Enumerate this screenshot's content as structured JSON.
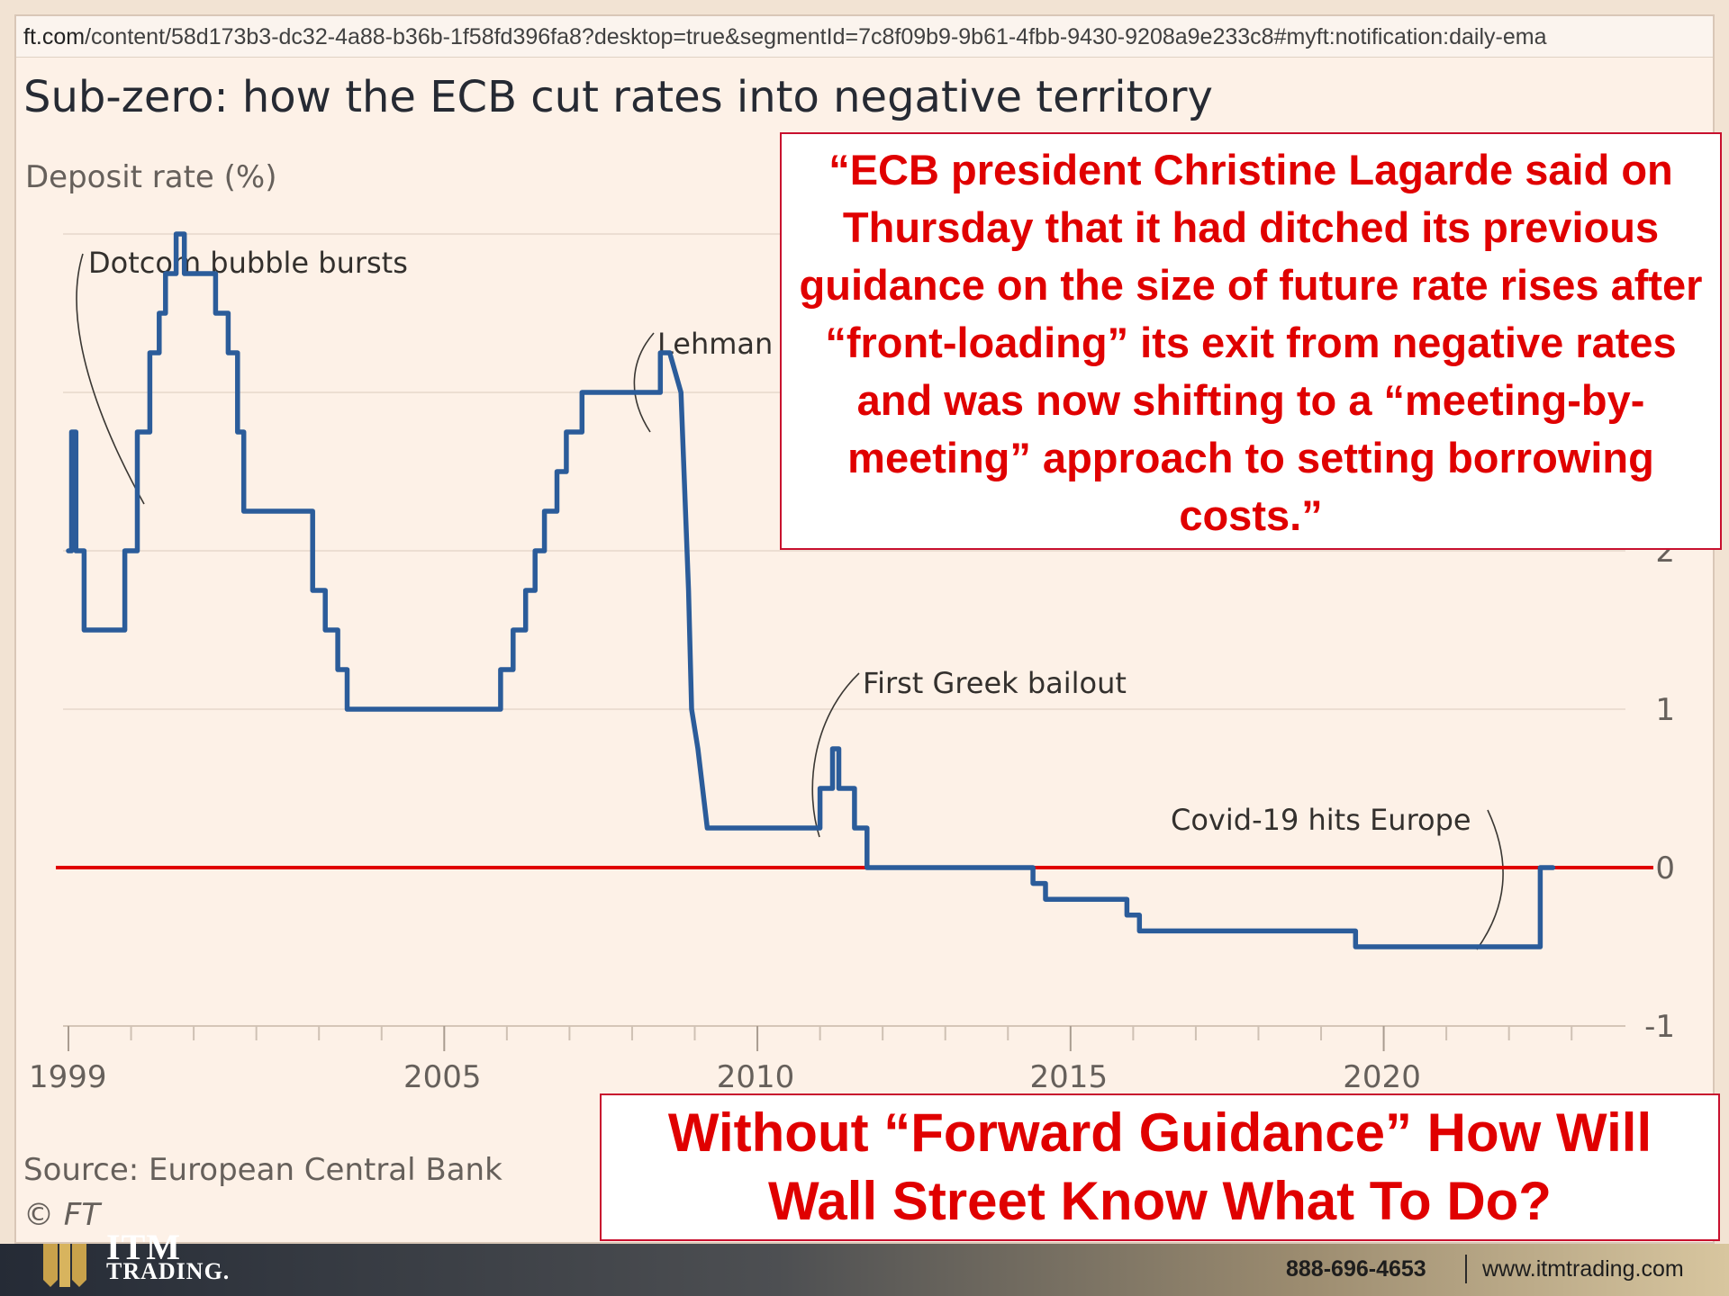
{
  "browser": {
    "url_domain": "ft.com",
    "url_path": "/content/58d173b3-dc32-4a88-b36b-1f58fd396fa8?desktop=true&segmentId=7c8f09b9-9b61-4fbb-9430-9208a9e233c8#myft:notification:daily-ema"
  },
  "chart_data": {
    "type": "line",
    "title": "Sub-zero: how the ECB cut rates into negative territory",
    "ylabel": "Deposit rate (%)",
    "xlim": [
      1999.0,
      2023.5
    ],
    "ylim": [
      -1,
      4
    ],
    "x_ticks": [
      "1999",
      "2005",
      "2010",
      "2015",
      "2020"
    ],
    "x_tick_values": [
      1999,
      2005,
      2010,
      2015,
      2020
    ],
    "y_ticks": [
      "2",
      "1",
      "0",
      "-1"
    ],
    "y_tick_values": [
      2,
      1,
      0,
      -1
    ],
    "grid": "horizontal",
    "reference_line": {
      "y": 0,
      "color": "#e00000"
    },
    "series": [
      {
        "color": "#2b5c9a",
        "x": [
          1999.0,
          1999.05,
          1999.05,
          1999.12,
          1999.12,
          1999.25,
          1999.25,
          1999.9,
          1999.9,
          2000.1,
          2000.1,
          2000.3,
          2000.3,
          2000.45,
          2000.45,
          2000.55,
          2000.55,
          2000.72,
          2000.72,
          2000.85,
          2000.85,
          2001.35,
          2001.35,
          2001.55,
          2001.55,
          2001.7,
          2001.7,
          2001.8,
          2001.8,
          2002.0,
          2002.9,
          2002.9,
          2003.1,
          2003.1,
          2003.3,
          2003.3,
          2003.45,
          2003.45,
          2005.9,
          2005.9,
          2006.1,
          2006.1,
          2006.3,
          2006.3,
          2006.45,
          2006.45,
          2006.6,
          2006.6,
          2006.8,
          2006.8,
          2006.95,
          2006.95,
          2007.2,
          2007.2,
          2007.4,
          2007.4,
          2007.45,
          2007.45,
          2008.45,
          2008.45,
          2008.6,
          2008.6,
          2008.78,
          2008.9,
          2008.95,
          2008.95,
          2009.05,
          2009.2,
          2009.3,
          2009.3,
          2011.0,
          2011.0,
          2011.2,
          2011.2,
          2011.3,
          2011.3,
          2011.55,
          2011.55,
          2011.75,
          2011.75,
          2012.0,
          2012.0,
          2012.45,
          2012.45,
          2014.4,
          2014.4,
          2014.6,
          2014.6,
          2014.7,
          2014.7,
          2015.9,
          2015.9,
          2016.1,
          2016.1,
          2016.2,
          2016.2,
          2019.55,
          2019.55,
          2019.7,
          2019.7,
          2022.5,
          2022.5,
          2022.6,
          2022.6,
          2022.7
        ],
        "values": [
          2.0,
          2.0,
          2.75,
          2.75,
          2.0,
          2.0,
          1.5,
          1.5,
          2.0,
          2.0,
          2.75,
          2.75,
          3.25,
          3.25,
          3.5,
          3.5,
          3.75,
          3.75,
          4.0,
          4.0,
          3.75,
          3.75,
          3.5,
          3.5,
          3.25,
          3.25,
          2.75,
          2.75,
          2.25,
          2.25,
          2.25,
          1.75,
          1.75,
          1.5,
          1.5,
          1.25,
          1.25,
          1.0,
          1.0,
          1.25,
          1.25,
          1.5,
          1.5,
          1.75,
          1.75,
          2.0,
          2.0,
          2.25,
          2.25,
          2.5,
          2.5,
          2.75,
          2.75,
          3.0,
          3.0,
          3.0,
          3.0,
          3.0,
          3.0,
          3.25,
          3.25,
          3.25,
          3.0,
          1.75,
          1.0,
          1.0,
          0.75,
          0.25,
          0.25,
          0.25,
          0.25,
          0.5,
          0.5,
          0.75,
          0.75,
          0.5,
          0.5,
          0.25,
          0.25,
          0.0,
          0.0,
          0.0,
          0.0,
          0.0,
          0.0,
          -0.1,
          -0.1,
          -0.2,
          -0.2,
          -0.2,
          -0.2,
          -0.3,
          -0.3,
          -0.4,
          -0.4,
          -0.4,
          -0.4,
          -0.5,
          -0.5,
          -0.5,
          -0.5,
          0.0,
          0.0,
          0.0,
          0.0
        ]
      }
    ],
    "annotations": [
      {
        "text": "Dotcom bubble bursts",
        "x": 2000.1,
        "y": 2.6
      },
      {
        "text": "Lehman",
        "x": 2008.2,
        "y": 3.0
      },
      {
        "text": "First Greek bailout",
        "x": 2010.2,
        "y": 0.25
      },
      {
        "text": "Covid-19 hits Europe",
        "x": 2020.2,
        "y": -0.5
      }
    ],
    "source": "Source: European Central Bank",
    "credit": "© FT"
  },
  "callouts": {
    "quote": "“ECB president Christine Lagarde said on Thursday that it had ditched its previous guidance on the size of future rate rises after “front-loading” its exit from negative rates and was now shifting to a “meeting-by-meeting” approach to setting borrowing costs.”",
    "headline": "Without “Forward Guidance” How Will Wall Street Know What To Do?"
  },
  "footer": {
    "logo_top": "ITM",
    "logo_bottom": "TRADING.",
    "phone": "888-696-4653",
    "website": "www.itmtrading.com"
  },
  "colors": {
    "line": "#2b5c9a",
    "zero_line": "#e00000",
    "callout_text": "#e00000",
    "background": "#fdf1e7"
  }
}
